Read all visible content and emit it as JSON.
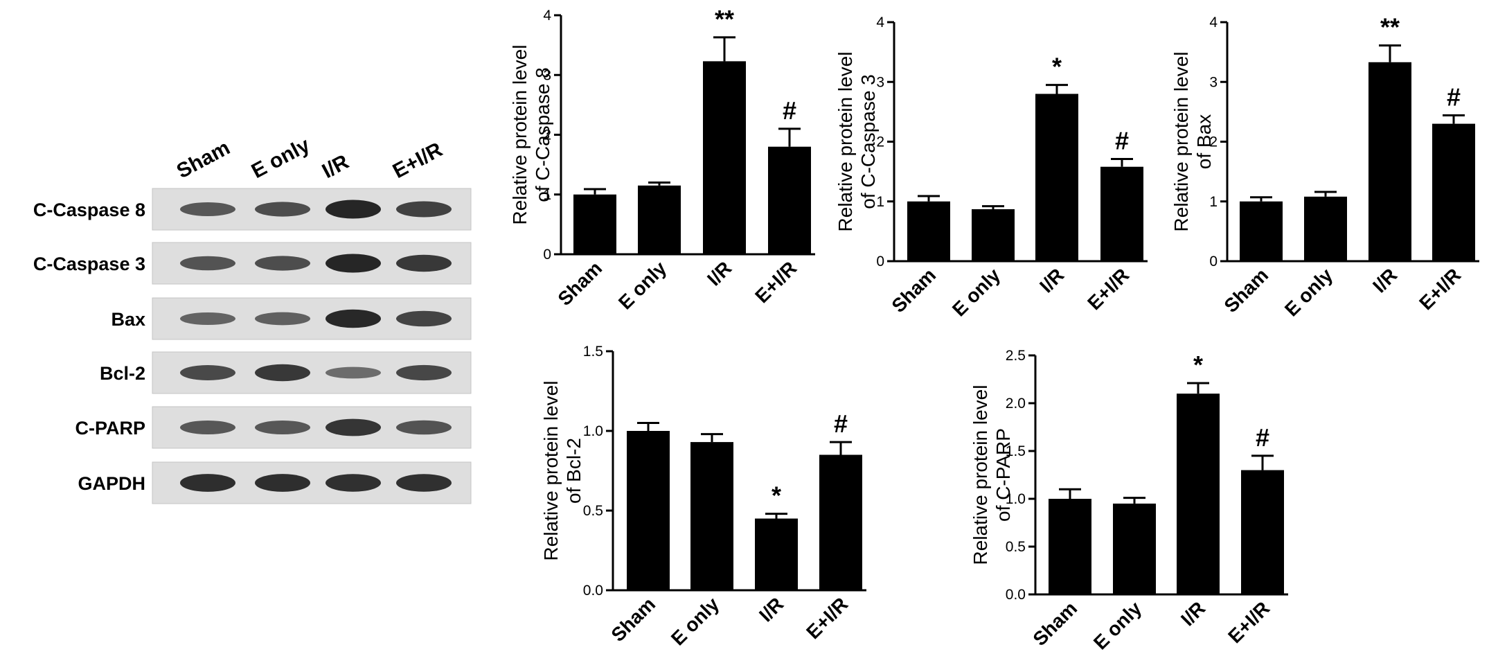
{
  "blot": {
    "lanes": [
      "Sham",
      "E only",
      "I/R",
      "E+I/R"
    ],
    "rows": [
      {
        "label": "C-Caspase 8",
        "intensity": [
          0.55,
          0.62,
          0.95,
          0.72
        ]
      },
      {
        "label": "C-Caspase 3",
        "intensity": [
          0.58,
          0.62,
          0.95,
          0.8
        ]
      },
      {
        "label": "Bax",
        "intensity": [
          0.45,
          0.48,
          0.92,
          0.7
        ]
      },
      {
        "label": "Bcl-2",
        "intensity": [
          0.66,
          0.8,
          0.38,
          0.68
        ]
      },
      {
        "label": "C-PARP",
        "intensity": [
          0.55,
          0.55,
          0.82,
          0.58
        ]
      },
      {
        "label": "GAPDH",
        "intensity": [
          0.88,
          0.88,
          0.86,
          0.86
        ]
      }
    ]
  },
  "chart_data": [
    {
      "type": "bar",
      "categories": [
        "Sham",
        "E only",
        "I/R",
        "E+I/R"
      ],
      "values": [
        1.0,
        1.15,
        3.23,
        1.8
      ],
      "errors": [
        0.09,
        0.05,
        0.4,
        0.3
      ],
      "annotations": [
        "",
        "",
        "**",
        "#"
      ],
      "ylabel_lines": [
        "Relative protein level",
        "of C-Caspase 8"
      ],
      "ylim": [
        0,
        4
      ],
      "yticks": [
        0,
        1,
        2,
        3,
        4
      ],
      "ytick_labels": [
        "0",
        "1",
        "2",
        "3",
        "4"
      ]
    },
    {
      "type": "bar",
      "categories": [
        "Sham",
        "E only",
        "I/R",
        "E+I/R"
      ],
      "values": [
        1.0,
        0.87,
        2.8,
        1.58
      ],
      "errors": [
        0.09,
        0.05,
        0.15,
        0.13
      ],
      "annotations": [
        "",
        "",
        "*",
        "#"
      ],
      "ylabel_lines": [
        "Relative protein level",
        "of C-Caspase 3"
      ],
      "ylim": [
        0,
        4
      ],
      "yticks": [
        0,
        1,
        2,
        3,
        4
      ],
      "ytick_labels": [
        "0",
        "1",
        "2",
        "3",
        "4"
      ]
    },
    {
      "type": "bar",
      "categories": [
        "Sham",
        "E only",
        "I/R",
        "E+I/R"
      ],
      "values": [
        1.0,
        1.08,
        3.33,
        2.3
      ],
      "errors": [
        0.07,
        0.08,
        0.28,
        0.14
      ],
      "annotations": [
        "",
        "",
        "**",
        "#"
      ],
      "ylabel_lines": [
        "Relative protein level",
        "of Bax"
      ],
      "ylim": [
        0,
        4
      ],
      "yticks": [
        0,
        1,
        2,
        3,
        4
      ],
      "ytick_labels": [
        "0",
        "1",
        "2",
        "3",
        "4"
      ]
    },
    {
      "type": "bar",
      "categories": [
        "Sham",
        "E only",
        "I/R",
        "E+I/R"
      ],
      "values": [
        1.0,
        0.93,
        0.45,
        0.85
      ],
      "errors": [
        0.05,
        0.05,
        0.03,
        0.08
      ],
      "annotations": [
        "",
        "",
        "*",
        "#"
      ],
      "ylabel_lines": [
        "Relative protein level",
        "of Bcl-2"
      ],
      "ylim": [
        0,
        1.5
      ],
      "yticks": [
        0,
        0.5,
        1.0,
        1.5
      ],
      "ytick_labels": [
        "0.0",
        "0.5",
        "1.0",
        "1.5"
      ]
    },
    {
      "type": "bar",
      "categories": [
        "Sham",
        "E only",
        "I/R",
        "E+I/R"
      ],
      "values": [
        1.0,
        0.95,
        2.1,
        1.3
      ],
      "errors": [
        0.1,
        0.06,
        0.11,
        0.15
      ],
      "annotations": [
        "",
        "",
        "*",
        "#"
      ],
      "ylabel_lines": [
        "Relative protein level",
        "of C-PARP"
      ],
      "ylim": [
        0,
        2.5
      ],
      "yticks": [
        0,
        0.5,
        1.0,
        1.5,
        2.0,
        2.5
      ],
      "ytick_labels": [
        "0.0",
        "0.5",
        "1.0",
        "1.5",
        "2.0",
        "2.5"
      ]
    }
  ]
}
